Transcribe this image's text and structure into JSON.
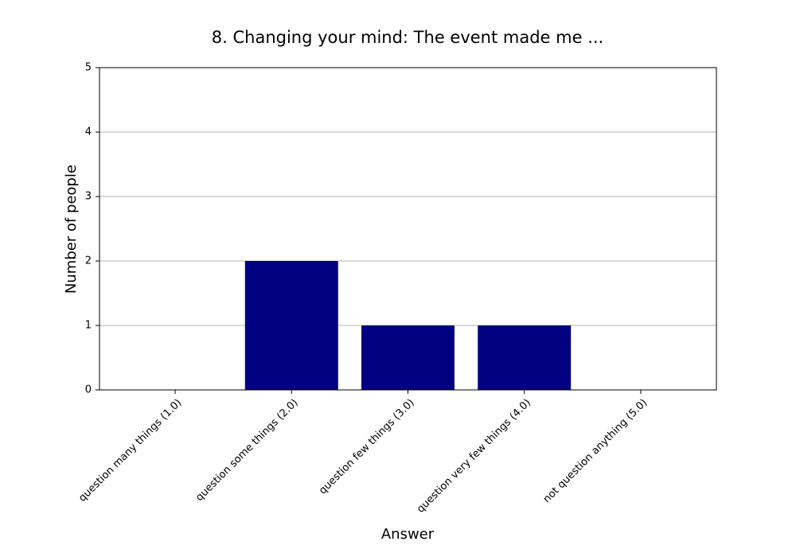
{
  "chart_data": {
    "type": "bar",
    "title": "8. Changing your mind: The event made me ...",
    "x_label": "Answer",
    "y_label": "Number of people",
    "categories": [
      "question many things (1.0)",
      "question some things (2.0)",
      "question few things (3.0)",
      "question very few things (4.0)",
      "not question anything (5.0)"
    ],
    "values": [
      0,
      2,
      1,
      1,
      0
    ],
    "color": "#000080",
    "ylim": [
      0,
      5
    ],
    "yticks": [
      0,
      1,
      2,
      3,
      4,
      5
    ],
    "grid": true
  }
}
